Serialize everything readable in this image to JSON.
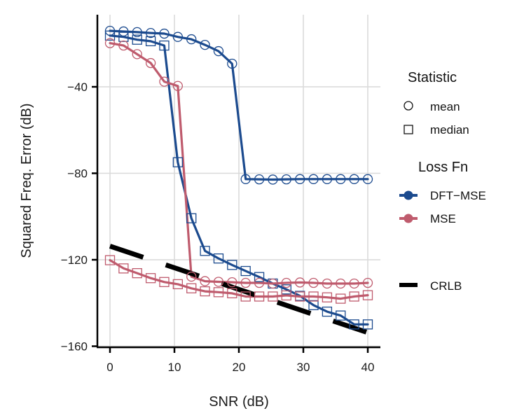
{
  "chart_data": {
    "type": "line",
    "title": "",
    "xlabel": "SNR (dB)",
    "ylabel": "Squared Freq. Error (dB)",
    "xlim": [
      -2,
      42
    ],
    "ylim": [
      -160.5,
      -7
    ],
    "xticks": [
      0,
      10,
      20,
      30,
      40
    ],
    "xtick_labels": [
      "0",
      "10",
      "20",
      "30",
      "40"
    ],
    "yticks": [
      -40,
      -80,
      -120,
      -160
    ],
    "ytick_labels": [
      "−40",
      "−80",
      "−120",
      "−160"
    ],
    "grid": true,
    "x": [
      0,
      2.105,
      4.211,
      6.316,
      8.421,
      10.526,
      12.632,
      14.737,
      16.842,
      18.947,
      21.053,
      23.158,
      25.263,
      27.368,
      29.474,
      31.579,
      33.684,
      35.789,
      37.895,
      40
    ],
    "series": [
      {
        "name": "DFT-MSE mean",
        "loss_fn": "DFT-MSE",
        "statistic": "mean",
        "marker": "circle",
        "color": "#1b4a8e",
        "values": [
          -14.1,
          -14.4,
          -14.7,
          -15.1,
          -15.4,
          -16.9,
          -18.0,
          -20.6,
          -23.5,
          -29.3,
          -82.7,
          -82.8,
          -82.9,
          -82.8,
          -82.7,
          -82.7,
          -82.7,
          -82.7,
          -82.7,
          -82.7
        ]
      },
      {
        "name": "DFT-MSE median",
        "loss_fn": "DFT-MSE",
        "statistic": "median",
        "marker": "square",
        "color": "#1b4a8e",
        "values": [
          -16.3,
          -16.9,
          -18.2,
          -18.9,
          -20.9,
          -74.9,
          -100.8,
          -115.9,
          -119.4,
          -122.4,
          -125.2,
          -128.0,
          -131.0,
          -133.7,
          -136.7,
          -141.0,
          -144.0,
          -145.8,
          -149.9,
          -149.9
        ]
      },
      {
        "name": "MSE mean",
        "loss_fn": "MSE",
        "statistic": "mean",
        "marker": "circle",
        "color": "#bf5b6d",
        "values": [
          -19.8,
          -20.9,
          -24.9,
          -29.0,
          -37.6,
          -39.6,
          -127.8,
          -129.9,
          -130.2,
          -130.4,
          -130.7,
          -130.7,
          -131.0,
          -130.7,
          -130.5,
          -130.7,
          -131.0,
          -131.0,
          -131.0,
          -130.7
        ]
      },
      {
        "name": "MSE median",
        "loss_fn": "MSE",
        "statistic": "median",
        "marker": "square",
        "color": "#bf5b6d",
        "values": [
          -120.2,
          -124.0,
          -126.2,
          -128.5,
          -130.3,
          -131.3,
          -133.2,
          -134.6,
          -135.0,
          -135.5,
          -137.0,
          -137.0,
          -137.0,
          -136.5,
          -137.0,
          -137.0,
          -137.4,
          -138.0,
          -137.0,
          -136.4
        ]
      }
    ],
    "crlb": {
      "name": "CRLB",
      "style": "dashed",
      "color": "#000000",
      "x": [
        0,
        40
      ],
      "values": [
        -113.7,
        -153.7
      ]
    },
    "legend": {
      "placement": "right",
      "statistic": {
        "title": "Statistic",
        "items": [
          {
            "label": "mean",
            "marker": "circle"
          },
          {
            "label": "median",
            "marker": "square"
          }
        ]
      },
      "loss_fn": {
        "title": "Loss Fn",
        "items": [
          {
            "label": "DFT−MSE",
            "color": "#1b4a8e"
          },
          {
            "label": "MSE",
            "color": "#bf5b6d"
          }
        ]
      },
      "crlb": {
        "items": [
          {
            "label": "CRLB",
            "color": "#000000"
          }
        ]
      }
    }
  }
}
